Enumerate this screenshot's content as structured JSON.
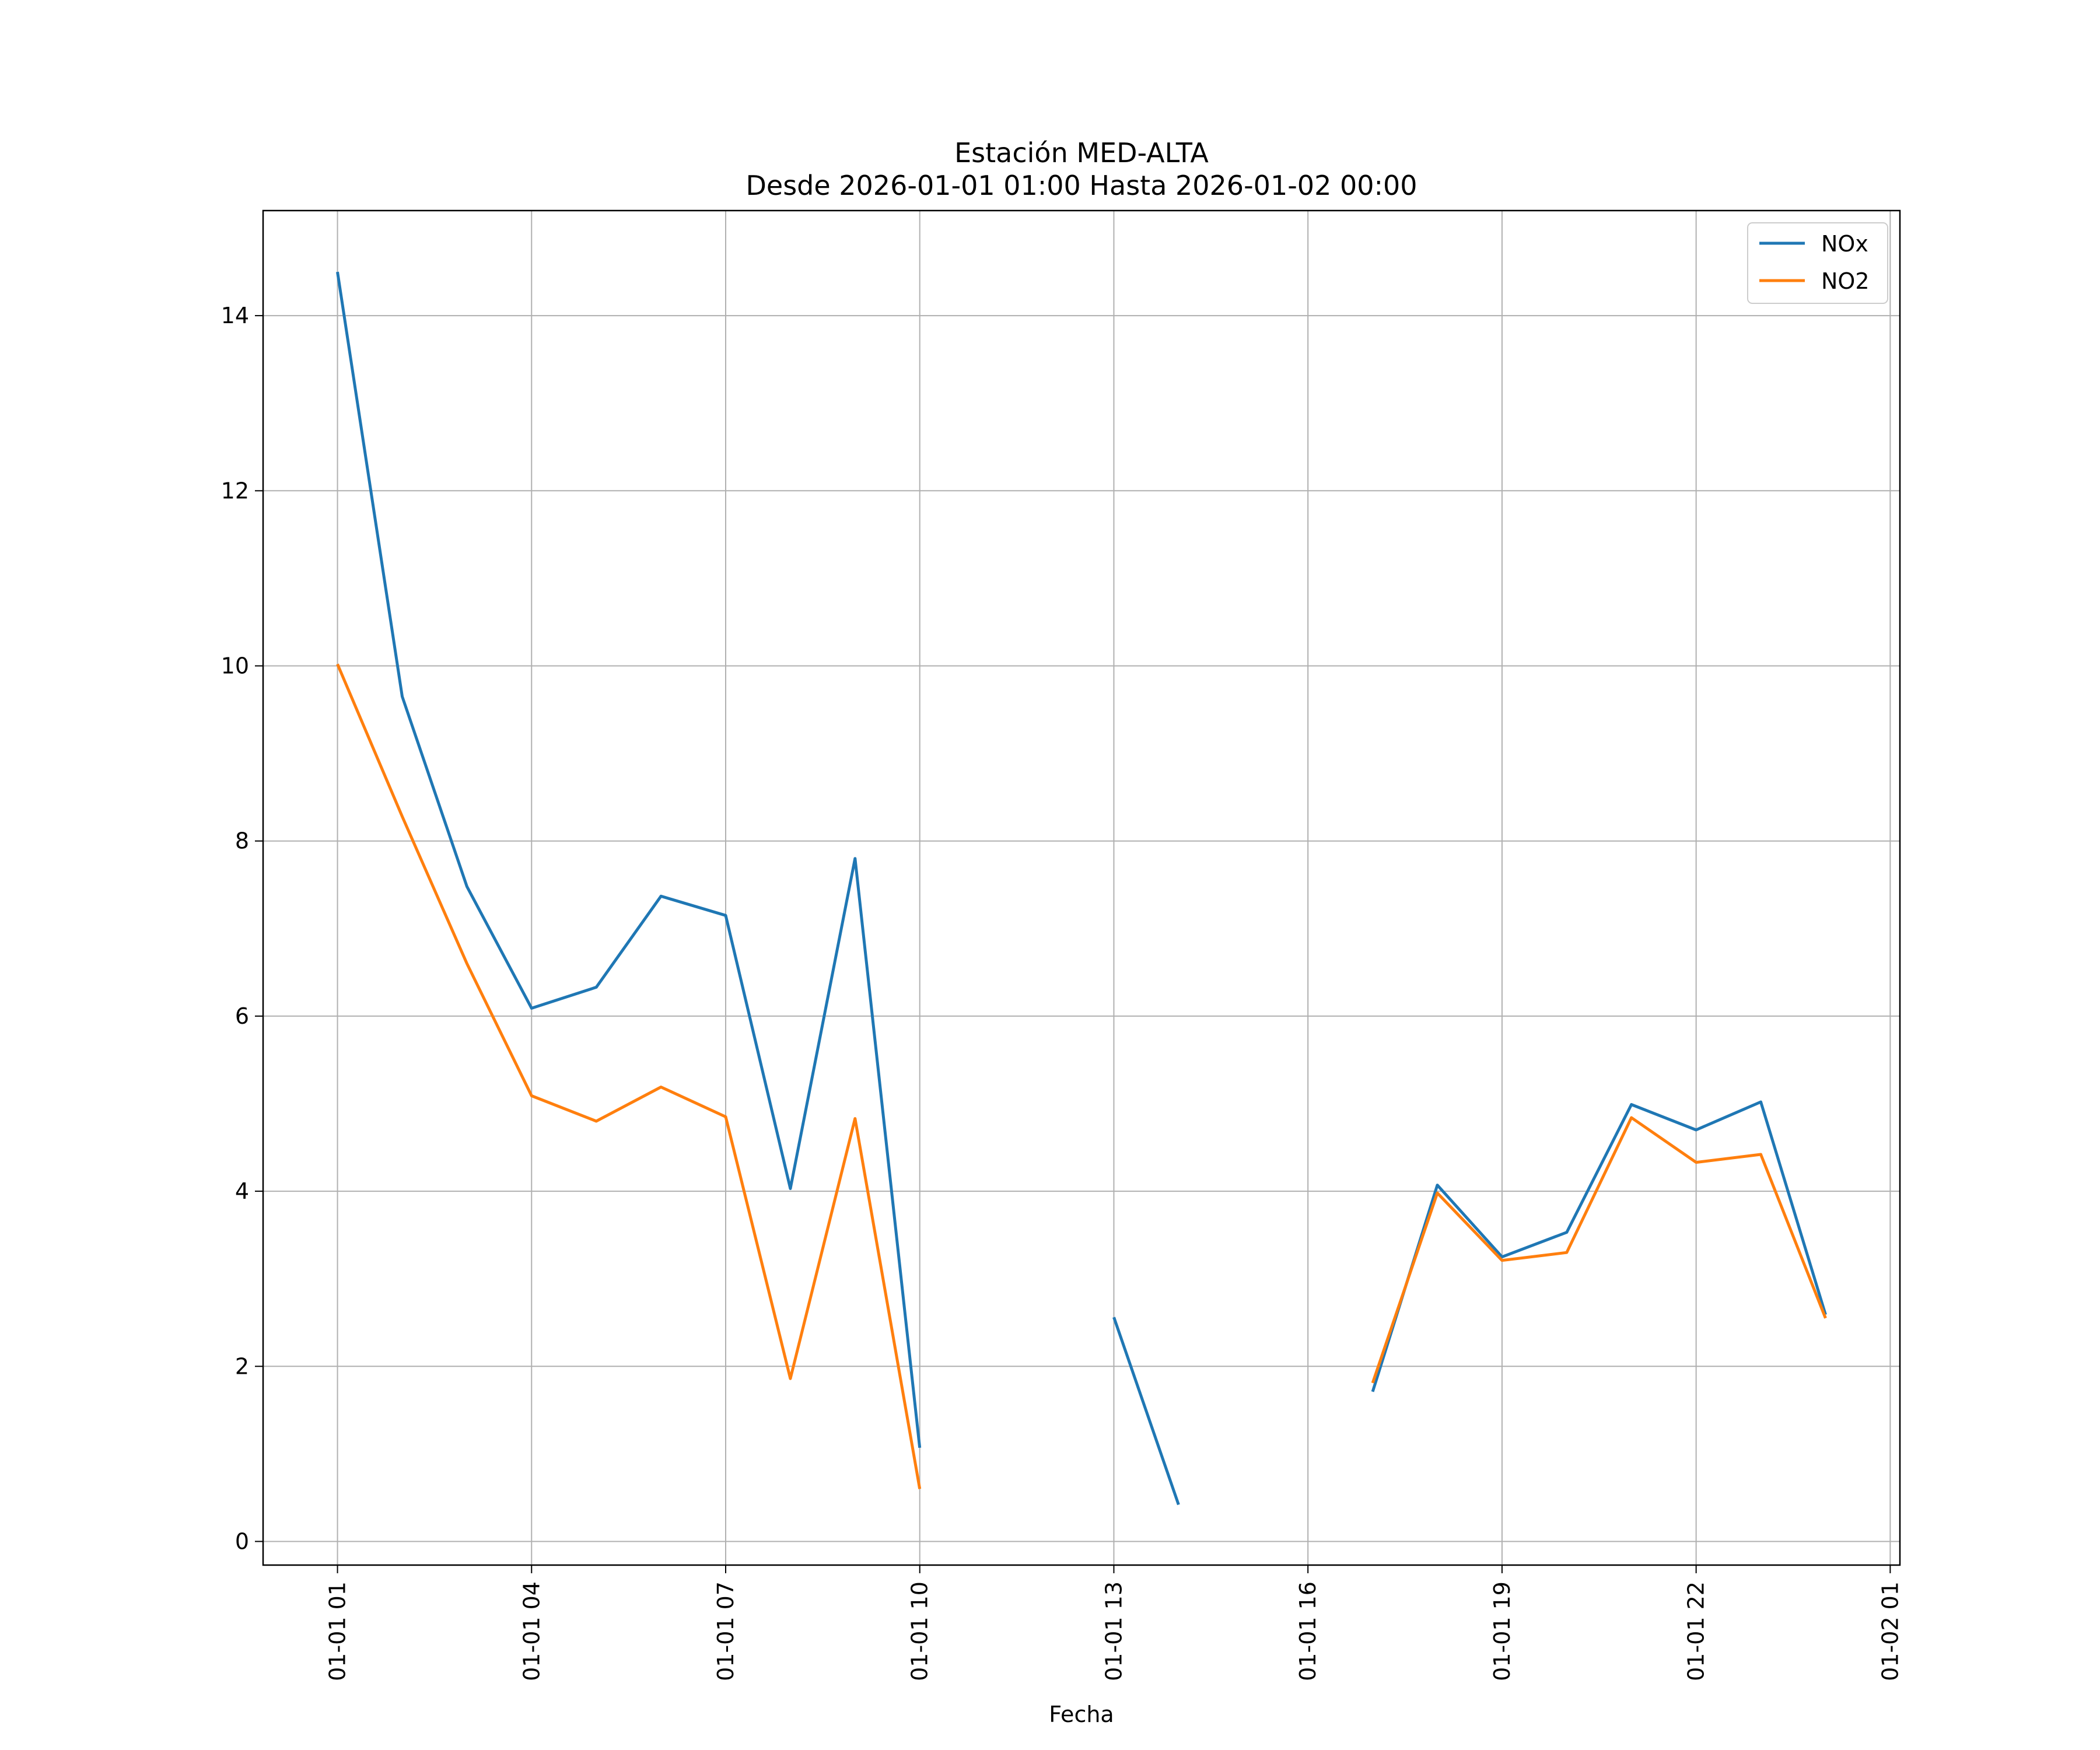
{
  "chart_data": {
    "type": "line",
    "title": "Estación MED-ALTA",
    "subtitle": "Desde 2026-01-01 01:00 Hasta 2026-01-02 00:00",
    "xlabel": "Fecha",
    "ylabel": "",
    "x": [
      "2026-01-01 01:00",
      "2026-01-01 02:00",
      "2026-01-01 03:00",
      "2026-01-01 04:00",
      "2026-01-01 05:00",
      "2026-01-01 06:00",
      "2026-01-01 07:00",
      "2026-01-01 08:00",
      "2026-01-01 09:00",
      "2026-01-01 10:00",
      "2026-01-01 11:00",
      "2026-01-01 12:00",
      "2026-01-01 13:00",
      "2026-01-01 14:00",
      "2026-01-01 15:00",
      "2026-01-01 16:00",
      "2026-01-01 17:00",
      "2026-01-01 18:00",
      "2026-01-01 19:00",
      "2026-01-01 20:00",
      "2026-01-01 21:00",
      "2026-01-01 22:00",
      "2026-01-01 23:00",
      "2026-01-02 00:00"
    ],
    "series": [
      {
        "name": "NOx",
        "color": "#1f77b4",
        "values": [
          14.5,
          9.65,
          7.48,
          6.09,
          6.33,
          7.37,
          7.15,
          4.03,
          7.8,
          1.07,
          null,
          null,
          2.56,
          0.42,
          null,
          null,
          1.71,
          4.07,
          3.25,
          3.53,
          4.99,
          4.7,
          5.02,
          2.59
        ]
      },
      {
        "name": "NO2",
        "color": "#ff7f0e",
        "values": [
          10.02,
          8.28,
          6.6,
          5.09,
          4.8,
          5.19,
          4.85,
          1.86,
          4.83,
          0.6,
          null,
          null,
          null,
          null,
          null,
          null,
          1.81,
          3.98,
          3.21,
          3.3,
          4.84,
          4.33,
          4.42,
          2.55
        ]
      }
    ],
    "x_ticks": [
      "01-01 01",
      "01-01 04",
      "01-01 07",
      "01-01 10",
      "01-01 13",
      "01-01 16",
      "01-01 19",
      "01-01 22",
      "01-02 01"
    ],
    "x_tick_hours": [
      0,
      3,
      6,
      9,
      12,
      15,
      18,
      21,
      24
    ],
    "y_ticks": [
      0,
      2,
      4,
      6,
      8,
      10,
      12,
      14
    ],
    "xlim_hours": [
      -1.15,
      24.15
    ],
    "ylim": [
      -0.27,
      15.2
    ],
    "grid": true,
    "legend_position": "upper right"
  }
}
